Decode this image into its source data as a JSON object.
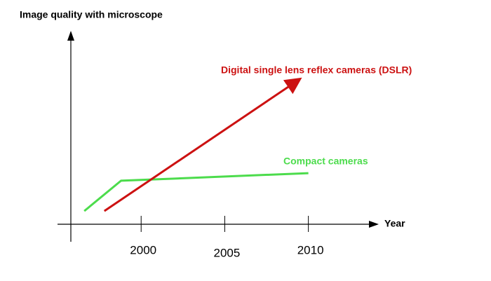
{
  "chart_data": {
    "type": "line",
    "title": "Image quality with microscope",
    "xlabel": "Year",
    "xlim": [
      1995,
      2014
    ],
    "xticks": [
      2000,
      2005,
      2010
    ],
    "ylim": [
      0,
      100
    ],
    "series": [
      {
        "name": "Compact cameras",
        "color": "#4cdc4c",
        "x": [
          1996.6,
          1998.8,
          2010
        ],
        "values": [
          7,
          23,
          27
        ],
        "arrow": false
      },
      {
        "name": "Digital single lens reflex cameras (DSLR)",
        "color": "#cc1111",
        "x": [
          1997.8,
          2009.2
        ],
        "values": [
          7,
          75
        ],
        "arrow": true
      }
    ]
  }
}
